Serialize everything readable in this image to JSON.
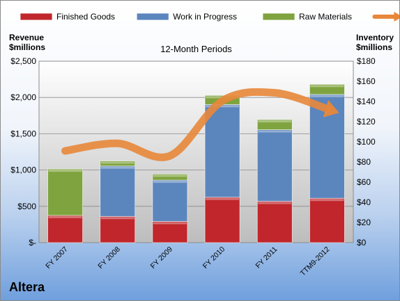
{
  "chart_data": {
    "type": "bar",
    "title": "12-Month Periods",
    "categories": [
      "FY 2007",
      "FY 2008",
      "FY 2009",
      "FY 2010",
      "FY 2011",
      "TTM9-2012"
    ],
    "stacked": true,
    "series": [
      {
        "name": "Finished Goods",
        "axis": "inventory",
        "color": "#c0262b",
        "values": [
          27,
          26,
          21,
          45,
          41,
          44
        ]
      },
      {
        "name": "Work in Progress",
        "axis": "inventory",
        "color": "#5b85bd",
        "values": [
          0,
          50,
          41,
          92,
          71,
          103
        ]
      },
      {
        "name": "Raw Materials",
        "axis": "inventory",
        "color": "#7fa33e",
        "values": [
          46,
          5,
          6,
          9,
          10,
          10
        ]
      },
      {
        "name": "Revenue",
        "type": "line",
        "axis": "revenue",
        "color": "#e8873a",
        "values": [
          1264,
          1367,
          1196,
          1954,
          2064,
          1845
        ]
      }
    ],
    "left_axis": {
      "label_line1": "Revenue",
      "label_line2": "$millions",
      "range": [
        0,
        2500
      ],
      "tick_labels": [
        "$-",
        "$500",
        "$1,000",
        "$1,500",
        "$2,000",
        "$2,500"
      ]
    },
    "right_axis": {
      "label_line1": "Inventory",
      "label_line2": "$millions",
      "range": [
        0,
        180
      ],
      "tick_labels": [
        "$0",
        "$20",
        "$40",
        "$60",
        "$80",
        "$100",
        "$120",
        "$140",
        "$160",
        "$180"
      ]
    },
    "legend": "top",
    "grid": true
  },
  "company": "Altera"
}
